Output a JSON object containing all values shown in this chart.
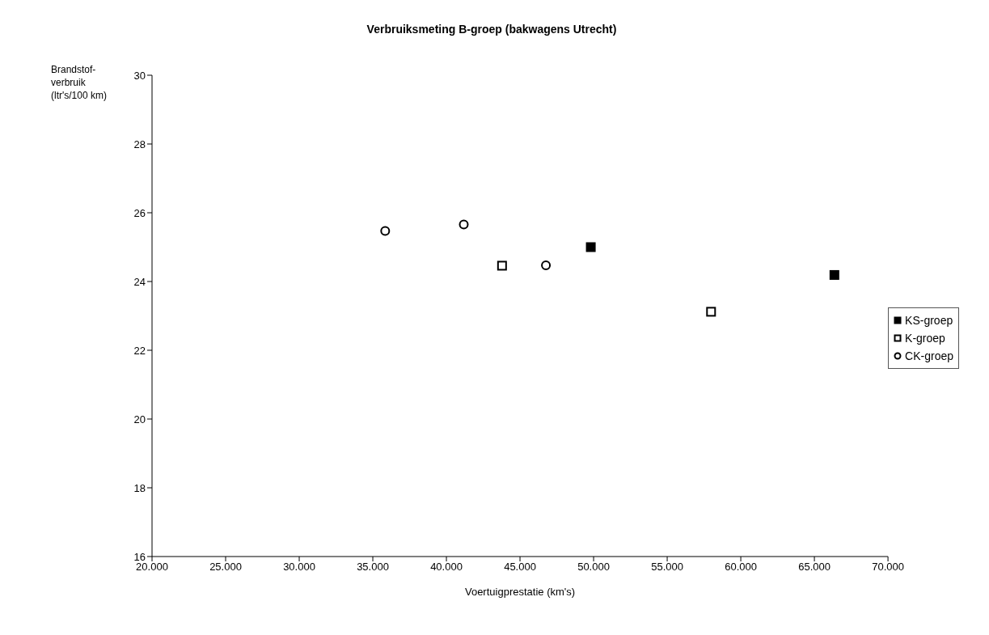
{
  "chart_data": {
    "type": "scatter",
    "title": "Verbruiksmeting B-groep (bakwagens Utrecht)",
    "xlabel": "Voertuigprestatie (km's)",
    "ylabel": "Brandstof-\nverbruik\n(ltr's/100 km)",
    "xlim": [
      20000,
      70000
    ],
    "xticks": [
      {
        "value": 20000,
        "label": "20.000"
      },
      {
        "value": 25000,
        "label": "25.000"
      },
      {
        "value": 30000,
        "label": "30.000"
      },
      {
        "value": 35000,
        "label": "35.000"
      },
      {
        "value": 40000,
        "label": "40.000"
      },
      {
        "value": 45000,
        "label": "45.000"
      },
      {
        "value": 50000,
        "label": "50.000"
      },
      {
        "value": 55000,
        "label": "55.000"
      },
      {
        "value": 60000,
        "label": "60.000"
      },
      {
        "value": 65000,
        "label": "65.000"
      },
      {
        "value": 70000,
        "label": "70.000"
      }
    ],
    "ylim": [
      16,
      30
    ],
    "yticks": [
      16,
      18,
      20,
      22,
      24,
      26,
      28,
      30
    ],
    "grid": false,
    "legend": "right",
    "series": [
      {
        "name": "KS-groep",
        "color": "#000000",
        "marker": "square",
        "x": [
          49810,
          66360
        ],
        "values": [
          25.0,
          24.19
        ]
      },
      {
        "name": "K-groep",
        "color": "#ffffff",
        "marker": "square",
        "x": [
          43780,
          57980
        ],
        "values": [
          24.46,
          23.12
        ]
      },
      {
        "name": "CK-groep",
        "color": "#ffffff",
        "marker": "circle",
        "x": [
          35840,
          41180,
          46760
        ],
        "values": [
          25.47,
          25.66,
          24.47
        ]
      }
    ]
  }
}
